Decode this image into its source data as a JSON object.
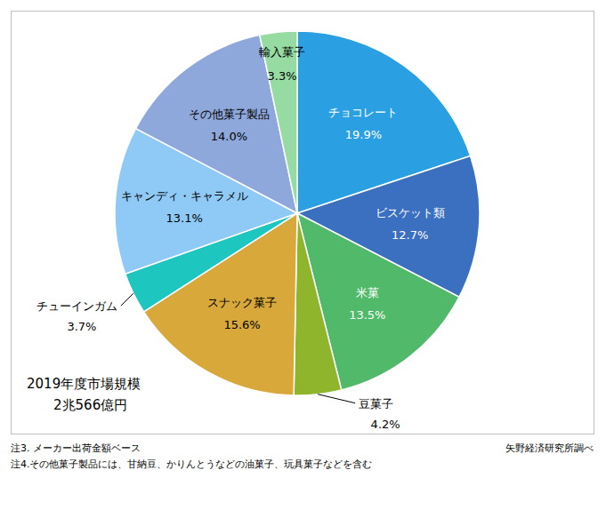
{
  "chart_data": {
    "type": "pie",
    "categories": [
      "チョコレート",
      "ビスケット類",
      "米菓",
      "豆菓子",
      "スナック菓子",
      "チューインガム",
      "キャンディ・キャラメル",
      "その他菓子製品",
      "輸入菓子"
    ],
    "values": [
      19.9,
      12.7,
      13.5,
      4.2,
      15.6,
      3.7,
      13.1,
      14.0,
      3.3
    ],
    "value_labels": [
      "19.9%",
      "12.7%",
      "13.5%",
      "4.2%",
      "15.6%",
      "3.7%",
      "13.1%",
      "14.0%",
      "3.3%"
    ],
    "colors": [
      "#2aa0e2",
      "#3b6fc0",
      "#50b96a",
      "#8fb52c",
      "#d9a83a",
      "#1ec6c0",
      "#8fc9f6",
      "#8fa8dc",
      "#96dca2"
    ],
    "data_labels": true,
    "annotations": [
      "2019年度市場規模",
      "2兆566億円"
    ],
    "notes": [
      "注3. メーカー出荷金額ベース",
      "注4.その他菓子製品には、甘納豆、かりんとうなどの油菓子、玩具菓子などを含む"
    ],
    "source": "矢野経済研究所調べ"
  }
}
